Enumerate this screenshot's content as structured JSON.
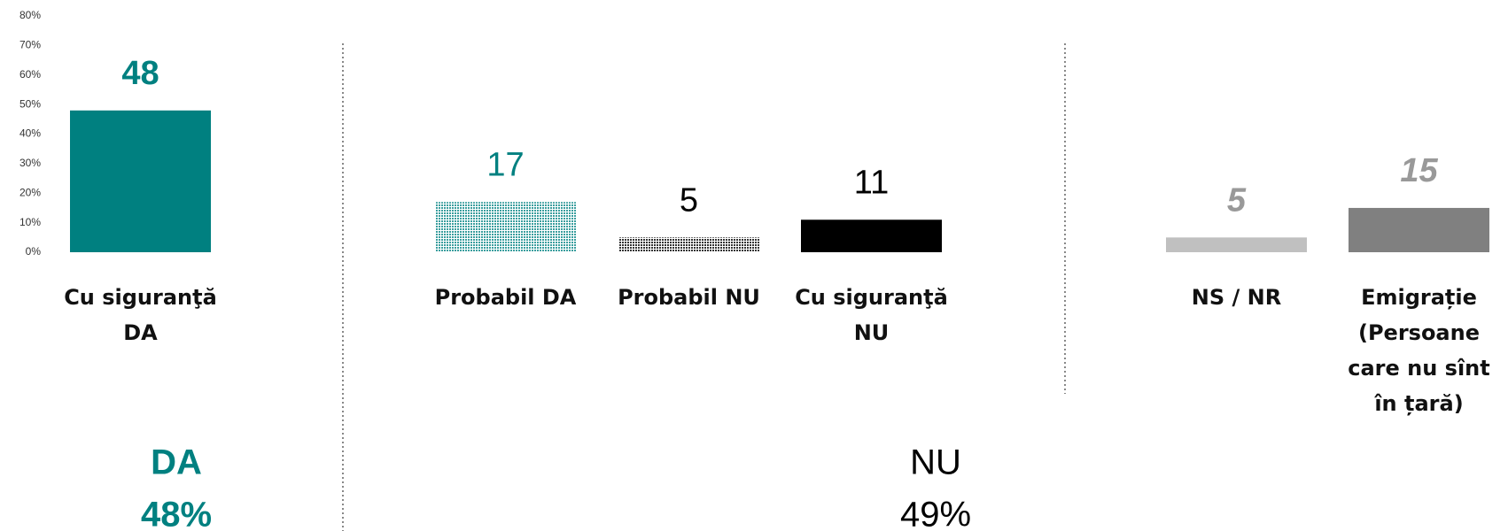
{
  "chart_data": {
    "type": "bar",
    "categories": [
      "Cu siguranţă DA",
      "Probabil DA",
      "Probabil NU",
      "Cu siguranţă NU",
      "NS / NR",
      "Emigrație (Persoane care nu sînt în țară)"
    ],
    "values": [
      48,
      17,
      5,
      11,
      5,
      15
    ],
    "colors": [
      "#008080",
      "#3a9e9e",
      "#333333",
      "#000000",
      "#c0c0c0",
      "#808080"
    ],
    "label_colors": [
      "#008080",
      "#008080",
      "#000000",
      "#000000",
      "#999999",
      "#999999"
    ],
    "hatched": [
      false,
      true,
      true,
      false,
      false,
      false
    ],
    "ylim": [
      0,
      80
    ],
    "yticks": [
      {
        "value": 0,
        "label": "0%"
      },
      {
        "value": 10,
        "label": "10%"
      },
      {
        "value": 20,
        "label": "20%"
      },
      {
        "value": 30,
        "label": "30%"
      },
      {
        "value": 40,
        "label": "40%"
      },
      {
        "value": 50,
        "label": "50%"
      },
      {
        "value": 60,
        "label": "60%"
      },
      {
        "value": 70,
        "label": "70%"
      },
      {
        "value": 80,
        "label": "80%"
      }
    ],
    "grid": false,
    "groups": [
      {
        "label": "DA",
        "value": 48,
        "value_label": "48%",
        "color": "#008080"
      },
      {
        "label": "NU",
        "value": 49,
        "value_label": "49%",
        "color": "#000000"
      }
    ]
  }
}
